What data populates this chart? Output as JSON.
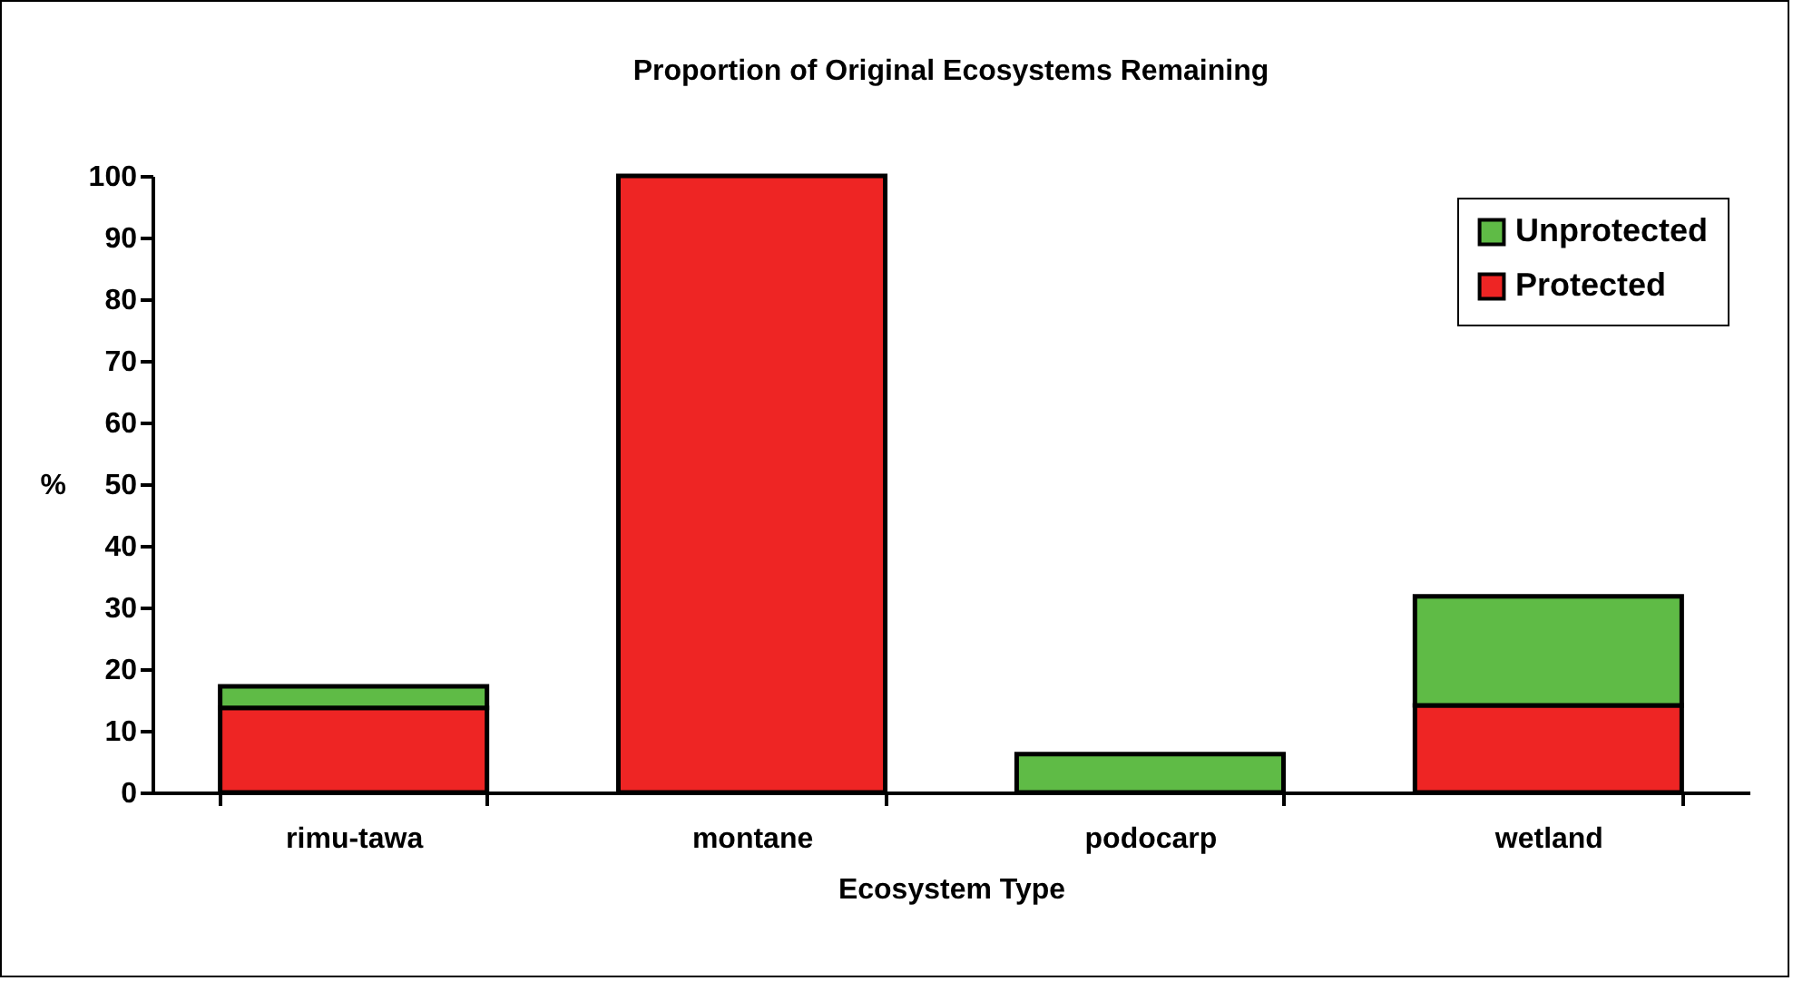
{
  "chart_data": {
    "type": "bar",
    "title": "Proportion of Original Ecosystems Remaining",
    "xlabel": "Ecosystem Type",
    "ylabel": "%",
    "categories": [
      "rimu-tawa",
      "montane",
      "podocarp",
      "wetland"
    ],
    "stacked": true,
    "series": [
      {
        "name": "Protected",
        "color": "#ee2524",
        "values": [
          13.7,
          100,
          null,
          14.1
        ]
      },
      {
        "name": "Unprotected",
        "color": "#5fbb46",
        "values": [
          3.5,
          null,
          6.2,
          17.7
        ]
      }
    ],
    "ylim": [
      0,
      100
    ],
    "yticks": [
      0,
      10,
      20,
      30,
      40,
      50,
      60,
      70,
      80,
      90,
      100
    ],
    "grid": false,
    "legend": "top right"
  }
}
